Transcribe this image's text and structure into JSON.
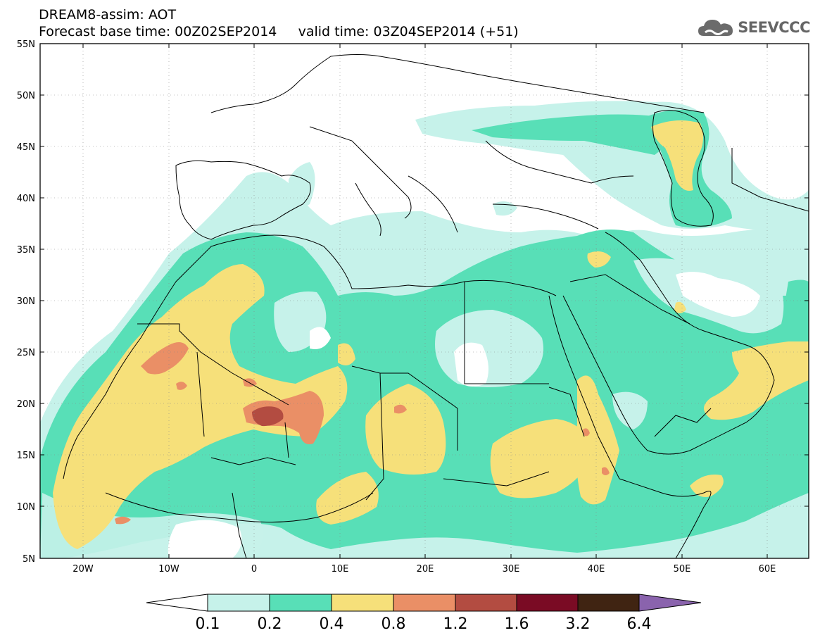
{
  "header": {
    "line1": "DREAM8-assim: AOT",
    "line2": "Forecast base time: 00Z02SEP2014     valid time: 03Z04SEP2014 (+51)"
  },
  "logo": {
    "text": "SEEVCCC",
    "icon": "cloud-logo-icon"
  },
  "map": {
    "lat_labels": [
      "55N",
      "50N",
      "45N",
      "40N",
      "35N",
      "30N",
      "25N",
      "20N",
      "15N",
      "10N",
      "5N"
    ],
    "lon_labels": [
      "20W",
      "10W",
      "0",
      "10E",
      "20E",
      "30E",
      "40E",
      "50E",
      "60E"
    ],
    "colors": {
      "c1": "#c6f2ea",
      "c2": "#58dfb7",
      "c3": "#f6e07a",
      "c4": "#ea8f66",
      "c5": "#b34c41",
      "c6": "#7a0b24",
      "c7": "#402412",
      "c8": "#8a63ad",
      "coast": "#000000"
    }
  },
  "colorbar": {
    "labels": [
      "0.1",
      "0.2",
      "0.4",
      "0.8",
      "1.2",
      "1.6",
      "3.2",
      "6.4"
    ]
  }
}
